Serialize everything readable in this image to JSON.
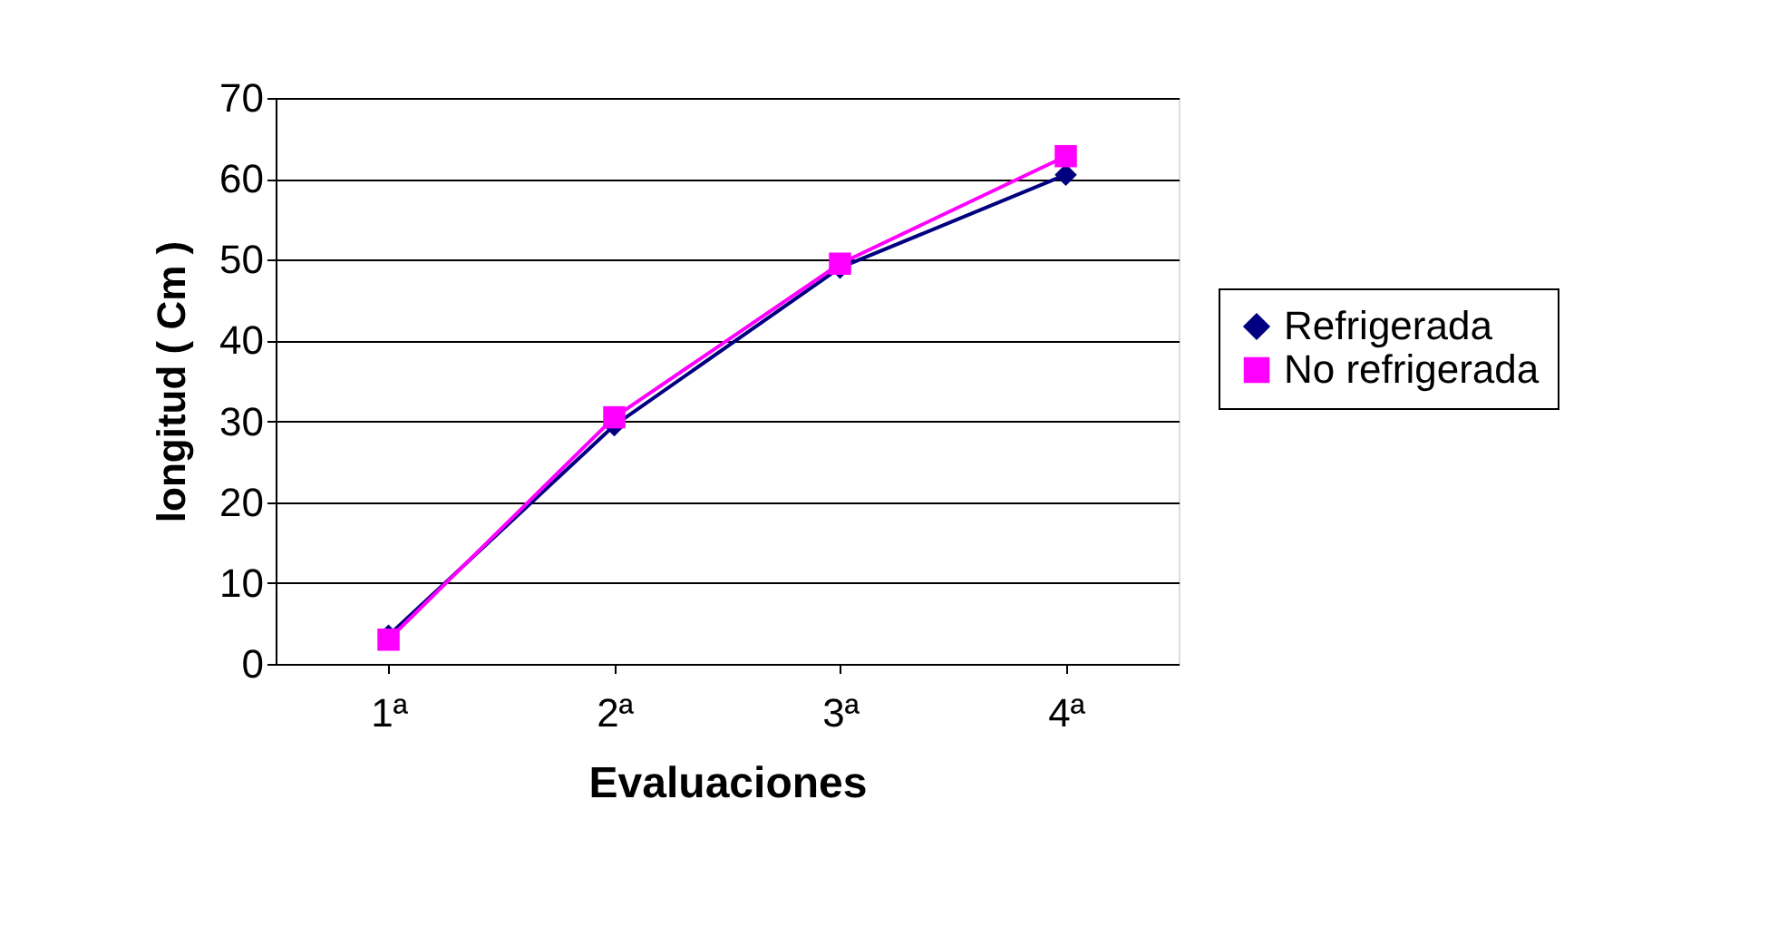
{
  "chart_data": {
    "type": "line",
    "xlabel": "Evaluaciones",
    "ylabel": "longitud  ( Cm )",
    "categories": [
      "1ª",
      "2ª",
      "3ª",
      "4ª"
    ],
    "series": [
      {
        "name": "Refrigerada",
        "color": "#000080",
        "marker": "diamond",
        "values": [
          3.5,
          29.5,
          49,
          60.5
        ]
      },
      {
        "name": "No refrigerada",
        "color": "#ff00ff",
        "marker": "square",
        "values": [
          3,
          30.5,
          49.5,
          62.8
        ]
      }
    ],
    "ylim": [
      0,
      70
    ],
    "yticks": [
      0,
      10,
      20,
      30,
      40,
      50,
      60,
      70
    ],
    "grid": "y",
    "legend": "right",
    "line_style": "solid"
  }
}
